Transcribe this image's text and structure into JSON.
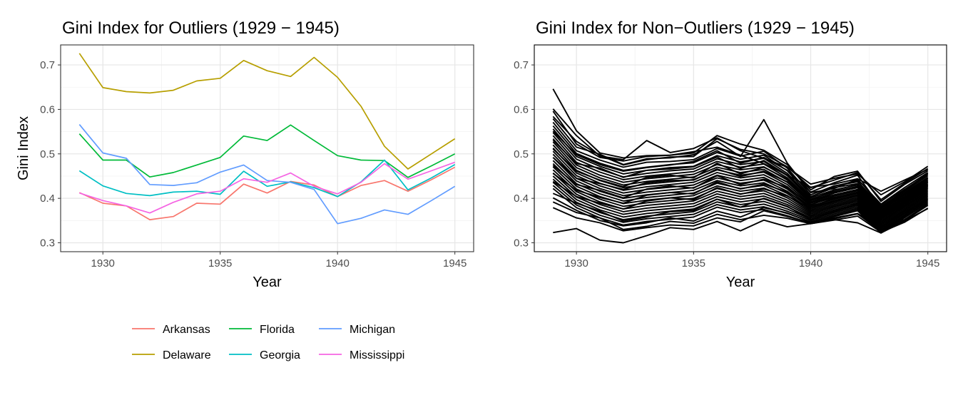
{
  "chart_data": [
    {
      "type": "line",
      "title": "Gini Index for Outliers (1929 − 1945)",
      "xlabel": "Year",
      "ylabel": "Gini Index",
      "xlim": [
        1928.2,
        1945.8
      ],
      "ylim": [
        0.28,
        0.745
      ],
      "x_ticks": [
        1930,
        1935,
        1940,
        1945
      ],
      "y_ticks": [
        0.3,
        0.4,
        0.5,
        0.6,
        0.7
      ],
      "grid": true,
      "legend": "bottom",
      "x": [
        1929,
        1930,
        1931,
        1932,
        1933,
        1934,
        1935,
        1936,
        1937,
        1938,
        1939,
        1940,
        1941,
        1942,
        1943,
        1944,
        1945
      ],
      "series": [
        {
          "name": "Arkansas",
          "color": "#F8766D",
          "values": [
            0.413,
            0.389,
            0.383,
            0.352,
            0.359,
            0.389,
            0.387,
            0.432,
            0.412,
            0.438,
            0.43,
            0.404,
            0.429,
            0.44,
            0.416,
            0.442,
            0.47
          ]
        },
        {
          "name": "Delaware",
          "color": "#B79F00",
          "values": [
            0.726,
            0.649,
            0.64,
            0.637,
            0.643,
            0.664,
            0.67,
            0.71,
            0.687,
            0.674,
            0.717,
            0.672,
            0.607,
            0.517,
            0.466,
            0.5,
            0.534
          ]
        },
        {
          "name": "Florida",
          "color": "#00BA38",
          "values": [
            0.545,
            0.486,
            0.486,
            0.448,
            0.458,
            0.475,
            0.492,
            0.54,
            0.53,
            0.565,
            0.53,
            0.496,
            0.486,
            0.485,
            0.447,
            0.473,
            0.5
          ]
        },
        {
          "name": "Georgia",
          "color": "#00BFC4",
          "values": [
            0.462,
            0.428,
            0.411,
            0.406,
            0.414,
            0.416,
            0.409,
            0.461,
            0.427,
            0.437,
            0.424,
            0.404,
            0.437,
            0.486,
            0.419,
            0.446,
            0.476
          ]
        },
        {
          "name": "Michigan",
          "color": "#619CFF",
          "values": [
            0.566,
            0.502,
            0.49,
            0.431,
            0.429,
            0.435,
            0.459,
            0.475,
            0.44,
            0.436,
            0.42,
            0.343,
            0.355,
            0.374,
            0.364,
            0.395,
            0.427
          ]
        },
        {
          "name": "Mississippi",
          "color": "#F564E3",
          "values": [
            0.412,
            0.395,
            0.383,
            0.367,
            0.391,
            0.41,
            0.416,
            0.444,
            0.436,
            0.457,
            0.427,
            0.41,
            0.436,
            0.478,
            0.443,
            0.462,
            0.481
          ]
        }
      ]
    },
    {
      "type": "line",
      "title": "Gini Index for Non−Outliers (1929 − 1945)",
      "xlabel": "Year",
      "ylabel": "",
      "xlim": [
        1928.2,
        1945.8
      ],
      "ylim": [
        0.28,
        0.745
      ],
      "x_ticks": [
        1930,
        1935,
        1940,
        1945
      ],
      "y_ticks": [
        0.3,
        0.4,
        0.5,
        0.6,
        0.7
      ],
      "grid": true,
      "color": "#000000",
      "x": [
        1929,
        1930,
        1931,
        1932,
        1933,
        1934,
        1935,
        1936,
        1937,
        1938,
        1939,
        1940,
        1941,
        1942,
        1943,
        1944,
        1945
      ],
      "series": [
        {
          "values": [
            0.646,
            0.552,
            0.502,
            0.491,
            0.496,
            0.497,
            0.505,
            0.515,
            0.497,
            0.478,
            0.452,
            0.425,
            0.432,
            0.444,
            0.416,
            0.441,
            0.465
          ]
        },
        {
          "values": [
            0.601,
            0.541,
            0.495,
            0.487,
            0.53,
            0.503,
            0.512,
            0.536,
            0.507,
            0.49,
            0.47,
            0.432,
            0.445,
            0.455,
            0.408,
            0.437,
            0.472
          ]
        },
        {
          "values": [
            0.596,
            0.522,
            0.492,
            0.484,
            0.494,
            0.497,
            0.502,
            0.541,
            0.522,
            0.508,
            0.476,
            0.419,
            0.449,
            0.461,
            0.393,
            0.431,
            0.462
          ]
        },
        {
          "values": [
            0.579,
            0.515,
            0.499,
            0.476,
            0.489,
            0.491,
            0.498,
            0.528,
            0.494,
            0.577,
            0.479,
            0.413,
            0.422,
            0.443,
            0.387,
            0.424,
            0.458
          ]
        },
        {
          "values": [
            0.571,
            0.507,
            0.486,
            0.47,
            0.481,
            0.483,
            0.487,
            0.512,
            0.495,
            0.506,
            0.468,
            0.408,
            0.428,
            0.437,
            0.385,
            0.42,
            0.454
          ]
        },
        {
          "values": [
            0.563,
            0.501,
            0.479,
            0.463,
            0.47,
            0.476,
            0.48,
            0.503,
            0.488,
            0.497,
            0.462,
            0.404,
            0.424,
            0.433,
            0.382,
            0.416,
            0.451
          ]
        },
        {
          "values": [
            0.556,
            0.494,
            0.472,
            0.455,
            0.463,
            0.469,
            0.472,
            0.496,
            0.482,
            0.49,
            0.456,
            0.401,
            0.419,
            0.43,
            0.379,
            0.413,
            0.447
          ]
        },
        {
          "values": [
            0.548,
            0.488,
            0.465,
            0.448,
            0.456,
            0.462,
            0.466,
            0.489,
            0.476,
            0.483,
            0.451,
            0.398,
            0.415,
            0.427,
            0.376,
            0.41,
            0.444
          ]
        },
        {
          "values": [
            0.541,
            0.481,
            0.459,
            0.442,
            0.45,
            0.455,
            0.46,
            0.483,
            0.47,
            0.477,
            0.446,
            0.395,
            0.412,
            0.424,
            0.373,
            0.407,
            0.441
          ]
        },
        {
          "values": [
            0.534,
            0.475,
            0.452,
            0.436,
            0.444,
            0.449,
            0.454,
            0.476,
            0.464,
            0.471,
            0.441,
            0.392,
            0.408,
            0.42,
            0.37,
            0.404,
            0.438
          ]
        },
        {
          "values": [
            0.527,
            0.469,
            0.446,
            0.43,
            0.438,
            0.443,
            0.448,
            0.47,
            0.458,
            0.465,
            0.436,
            0.389,
            0.405,
            0.417,
            0.367,
            0.401,
            0.435
          ]
        },
        {
          "values": [
            0.52,
            0.463,
            0.44,
            0.424,
            0.432,
            0.437,
            0.442,
            0.464,
            0.452,
            0.459,
            0.431,
            0.386,
            0.402,
            0.414,
            0.364,
            0.398,
            0.432
          ]
        },
        {
          "values": [
            0.513,
            0.457,
            0.434,
            0.418,
            0.426,
            0.431,
            0.436,
            0.458,
            0.446,
            0.453,
            0.426,
            0.383,
            0.398,
            0.411,
            0.361,
            0.395,
            0.429
          ]
        },
        {
          "values": [
            0.506,
            0.451,
            0.428,
            0.412,
            0.42,
            0.425,
            0.43,
            0.452,
            0.44,
            0.447,
            0.421,
            0.38,
            0.395,
            0.408,
            0.358,
            0.392,
            0.426
          ]
        },
        {
          "values": [
            0.499,
            0.445,
            0.422,
            0.406,
            0.414,
            0.419,
            0.424,
            0.446,
            0.434,
            0.441,
            0.416,
            0.377,
            0.392,
            0.405,
            0.355,
            0.389,
            0.423
          ]
        },
        {
          "values": [
            0.492,
            0.439,
            0.416,
            0.4,
            0.408,
            0.413,
            0.418,
            0.44,
            0.428,
            0.435,
            0.411,
            0.374,
            0.389,
            0.402,
            0.352,
            0.386,
            0.42
          ]
        },
        {
          "values": [
            0.485,
            0.433,
            0.41,
            0.394,
            0.402,
            0.407,
            0.412,
            0.434,
            0.422,
            0.429,
            0.406,
            0.371,
            0.386,
            0.399,
            0.349,
            0.383,
            0.417
          ]
        },
        {
          "values": [
            0.478,
            0.427,
            0.404,
            0.388,
            0.396,
            0.401,
            0.406,
            0.428,
            0.416,
            0.423,
            0.401,
            0.368,
            0.383,
            0.396,
            0.346,
            0.38,
            0.414
          ]
        },
        {
          "values": [
            0.471,
            0.421,
            0.398,
            0.382,
            0.39,
            0.395,
            0.4,
            0.422,
            0.41,
            0.417,
            0.396,
            0.365,
            0.38,
            0.393,
            0.343,
            0.377,
            0.411
          ]
        },
        {
          "values": [
            0.464,
            0.415,
            0.392,
            0.376,
            0.384,
            0.389,
            0.394,
            0.416,
            0.404,
            0.411,
            0.391,
            0.362,
            0.377,
            0.39,
            0.34,
            0.374,
            0.408
          ]
        },
        {
          "values": [
            0.457,
            0.409,
            0.386,
            0.37,
            0.378,
            0.383,
            0.388,
            0.41,
            0.398,
            0.405,
            0.386,
            0.359,
            0.374,
            0.387,
            0.337,
            0.371,
            0.405
          ]
        },
        {
          "values": [
            0.45,
            0.403,
            0.38,
            0.364,
            0.372,
            0.377,
            0.382,
            0.404,
            0.392,
            0.399,
            0.381,
            0.356,
            0.371,
            0.384,
            0.334,
            0.368,
            0.402
          ]
        },
        {
          "values": [
            0.443,
            0.397,
            0.374,
            0.358,
            0.366,
            0.371,
            0.376,
            0.398,
            0.386,
            0.393,
            0.376,
            0.353,
            0.368,
            0.381,
            0.331,
            0.365,
            0.399
          ]
        },
        {
          "values": [
            0.436,
            0.391,
            0.368,
            0.352,
            0.36,
            0.365,
            0.37,
            0.392,
            0.38,
            0.387,
            0.371,
            0.35,
            0.365,
            0.378,
            0.328,
            0.362,
            0.396
          ]
        },
        {
          "values": [
            0.429,
            0.385,
            0.362,
            0.346,
            0.354,
            0.359,
            0.364,
            0.386,
            0.374,
            0.381,
            0.366,
            0.347,
            0.362,
            0.375,
            0.325,
            0.359,
            0.393
          ]
        },
        {
          "values": [
            0.422,
            0.379,
            0.356,
            0.34,
            0.348,
            0.353,
            0.358,
            0.38,
            0.368,
            0.375,
            0.361,
            0.344,
            0.359,
            0.372,
            0.322,
            0.356,
            0.39
          ]
        },
        {
          "values": [
            0.411,
            0.389,
            0.371,
            0.349,
            0.358,
            0.37,
            0.373,
            0.398,
            0.38,
            0.4,
            0.382,
            0.352,
            0.37,
            0.388,
            0.337,
            0.366,
            0.399
          ]
        },
        {
          "values": [
            0.401,
            0.373,
            0.35,
            0.338,
            0.345,
            0.356,
            0.349,
            0.371,
            0.358,
            0.379,
            0.367,
            0.346,
            0.354,
            0.365,
            0.326,
            0.35,
            0.384
          ]
        },
        {
          "values": [
            0.392,
            0.368,
            0.356,
            0.33,
            0.337,
            0.348,
            0.344,
            0.364,
            0.352,
            0.362,
            0.355,
            0.343,
            0.351,
            0.36,
            0.324,
            0.346,
            0.378
          ]
        },
        {
          "values": [
            0.379,
            0.356,
            0.345,
            0.327,
            0.334,
            0.34,
            0.338,
            0.356,
            0.347,
            0.372,
            0.359,
            0.345,
            0.356,
            0.366,
            0.333,
            0.352,
            0.387
          ]
        },
        {
          "values": [
            0.323,
            0.332,
            0.306,
            0.3,
            0.316,
            0.334,
            0.33,
            0.348,
            0.327,
            0.351,
            0.336,
            0.343,
            0.352,
            0.345,
            0.322,
            0.349,
            0.377
          ]
        },
        {
          "values": [
            0.551,
            0.498,
            0.476,
            0.461,
            0.469,
            0.475,
            0.483,
            0.507,
            0.479,
            0.492,
            0.463,
            0.414,
            0.435,
            0.452,
            0.379,
            0.418,
            0.456
          ]
        },
        {
          "values": [
            0.531,
            0.478,
            0.468,
            0.447,
            0.463,
            0.466,
            0.471,
            0.493,
            0.467,
            0.485,
            0.452,
            0.403,
            0.427,
            0.44,
            0.372,
            0.409,
            0.445
          ]
        },
        {
          "values": [
            0.511,
            0.461,
            0.441,
            0.426,
            0.447,
            0.452,
            0.446,
            0.479,
            0.455,
            0.47,
            0.443,
            0.396,
            0.418,
            0.431,
            0.366,
            0.403,
            0.44
          ]
        },
        {
          "values": [
            0.492,
            0.445,
            0.433,
            0.42,
            0.435,
            0.44,
            0.441,
            0.466,
            0.449,
            0.461,
            0.437,
            0.391,
            0.412,
            0.425,
            0.363,
            0.399,
            0.436
          ]
        },
        {
          "values": [
            0.474,
            0.431,
            0.418,
            0.401,
            0.421,
            0.428,
            0.423,
            0.451,
            0.431,
            0.443,
            0.424,
            0.385,
            0.405,
            0.418,
            0.359,
            0.394,
            0.431
          ]
        },
        {
          "values": [
            0.456,
            0.418,
            0.402,
            0.389,
            0.407,
            0.413,
            0.41,
            0.437,
            0.421,
            0.432,
            0.414,
            0.381,
            0.4,
            0.412,
            0.356,
            0.39,
            0.427
          ]
        },
        {
          "values": [
            0.438,
            0.404,
            0.389,
            0.376,
            0.394,
            0.401,
            0.397,
            0.424,
            0.409,
            0.421,
            0.405,
            0.377,
            0.394,
            0.407,
            0.353,
            0.386,
            0.423
          ]
        },
        {
          "values": [
            0.584,
            0.528,
            0.497,
            0.475,
            0.487,
            0.493,
            0.494,
            0.534,
            0.51,
            0.5,
            0.471,
            0.424,
            0.441,
            0.458,
            0.397,
            0.434,
            0.467
          ]
        }
      ]
    }
  ],
  "legend": {
    "items": [
      {
        "label": "Arkansas",
        "color": "#F8766D"
      },
      {
        "label": "Delaware",
        "color": "#B79F00"
      },
      {
        "label": "Florida",
        "color": "#00BA38"
      },
      {
        "label": "Georgia",
        "color": "#00BFC4"
      },
      {
        "label": "Michigan",
        "color": "#619CFF"
      },
      {
        "label": "Mississippi",
        "color": "#F564E3"
      }
    ]
  }
}
